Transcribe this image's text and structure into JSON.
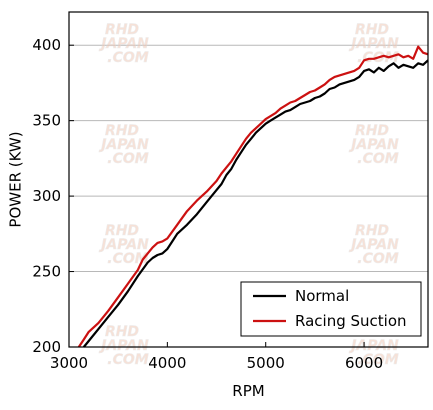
{
  "chart_data": {
    "type": "line",
    "xlabel": "RPM",
    "ylabel": "POWER (KW)",
    "xlim": [
      3000,
      6650
    ],
    "ylim": [
      200,
      422
    ],
    "x_ticks": [
      3000,
      4000,
      5000,
      6000
    ],
    "y_ticks": [
      200,
      250,
      300,
      350,
      400
    ],
    "grid": "horizontal",
    "legend_position": "bottom-right",
    "series": [
      {
        "name": "Normal",
        "color": "#000000",
        "x": [
          3150,
          3200,
          3300,
          3400,
          3500,
          3600,
          3700,
          3800,
          3850,
          3900,
          3950,
          4000,
          4050,
          4100,
          4200,
          4300,
          4400,
          4450,
          4500,
          4550,
          4600,
          4650,
          4700,
          4750,
          4800,
          4850,
          4900,
          4950,
          5000,
          5050,
          5100,
          5150,
          5200,
          5250,
          5300,
          5350,
          5400,
          5450,
          5500,
          5550,
          5600,
          5650,
          5700,
          5750,
          5800,
          5850,
          5900,
          5950,
          6000,
          6050,
          6100,
          6150,
          6200,
          6250,
          6300,
          6350,
          6400,
          6450,
          6500,
          6550,
          6600,
          6650
        ],
        "values": [
          200,
          204,
          212,
          220,
          228,
          237,
          247,
          256,
          259,
          261,
          262,
          265,
          270,
          275,
          281,
          288,
          296,
          300,
          304,
          308,
          314,
          318,
          324,
          329,
          334,
          338,
          342,
          345,
          348,
          350,
          352,
          354,
          356,
          357,
          359,
          361,
          362,
          363,
          365,
          366,
          368,
          371,
          372,
          374,
          375,
          376,
          377,
          379,
          383,
          384,
          382,
          385,
          383,
          386,
          388,
          385,
          387,
          386,
          385,
          388,
          387,
          390
        ]
      },
      {
        "name": "Racing Suction",
        "color": "#cc1111",
        "x": [
          3100,
          3150,
          3200,
          3300,
          3400,
          3500,
          3600,
          3700,
          3750,
          3800,
          3850,
          3900,
          3950,
          4000,
          4100,
          4200,
          4300,
          4400,
          4500,
          4550,
          4600,
          4650,
          4700,
          4750,
          4800,
          4850,
          4900,
          4950,
          5000,
          5050,
          5100,
          5150,
          5200,
          5250,
          5300,
          5350,
          5400,
          5450,
          5500,
          5550,
          5600,
          5650,
          5700,
          5750,
          5800,
          5850,
          5900,
          5950,
          6000,
          6050,
          6100,
          6150,
          6200,
          6250,
          6300,
          6350,
          6400,
          6450,
          6500,
          6550,
          6600,
          6650
        ],
        "values": [
          200,
          205,
          210,
          216,
          224,
          233,
          242,
          251,
          258,
          262,
          266,
          269,
          270,
          272,
          281,
          290,
          297,
          303,
          310,
          315,
          319,
          323,
          328,
          333,
          338,
          342,
          345,
          348,
          351,
          353,
          355,
          358,
          360,
          362,
          363,
          365,
          367,
          369,
          370,
          372,
          374,
          377,
          379,
          380,
          381,
          382,
          383,
          385,
          390,
          391,
          391,
          392,
          393,
          392,
          393,
          394,
          392,
          393,
          391,
          399,
          395,
          394
        ]
      }
    ],
    "watermark_text": [
      "RHD",
      "JAPAN",
      ".COM"
    ]
  }
}
